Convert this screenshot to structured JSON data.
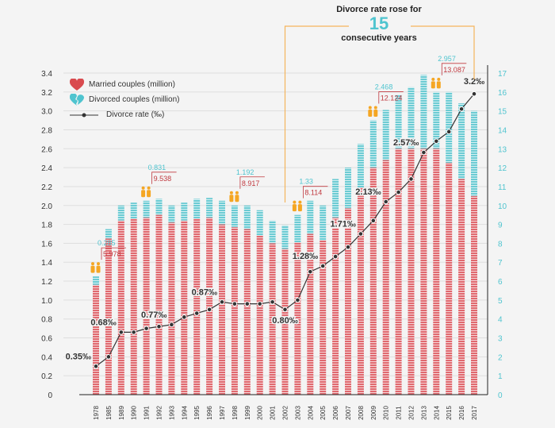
{
  "headline": {
    "line1": "Divorce rate rose for",
    "number": "15",
    "line2": "consecutive years"
  },
  "legend": {
    "married": "Married couples (million)",
    "divorced": "Divorced couples (million)",
    "rate": "Divorce rate (‰)"
  },
  "colors": {
    "married": "#e0696f",
    "divorced": "#6ccbd3",
    "rate_line": "#333333",
    "bracket": "#f5b45c",
    "people_icon": "#f5a623",
    "right_axis": "#4fc4cf"
  },
  "chart_data": {
    "type": "bar",
    "stacked_bars_with_line": true,
    "categories": [
      "1978",
      "1985",
      "1989",
      "1990",
      "1991",
      "1992",
      "1993",
      "1994",
      "1995",
      "1996",
      "1997",
      "1998",
      "1999",
      "2000",
      "2001",
      "2002",
      "2003",
      "2004",
      "2005",
      "2006",
      "2007",
      "2008",
      "2009",
      "2010",
      "2011",
      "2012",
      "2013",
      "2014",
      "2015",
      "2016",
      "2017"
    ],
    "left_axis": {
      "ylim": [
        0,
        3.4
      ],
      "ticks": [
        "0",
        "0.2",
        "0.4",
        "0.6",
        "0.8",
        "1.0",
        "1.2",
        "1.4",
        "1.6",
        "1.8",
        "2.0",
        "2.2",
        "2.4",
        "2.6",
        "2.8",
        "3.0",
        "3.2",
        "3.4"
      ]
    },
    "right_axis": {
      "ylim": [
        0,
        17
      ],
      "ticks": [
        "0",
        "1",
        "2",
        "3",
        "4",
        "5",
        "6",
        "7",
        "8",
        "9",
        "10",
        "11",
        "12",
        "13",
        "14",
        "15",
        "16",
        "17"
      ]
    },
    "grid": "horizontal",
    "legend_position": "top-left",
    "series": [
      {
        "name": "Married couples (million)",
        "axis": "left",
        "values": [
          1.16,
          1.65,
          1.84,
          1.86,
          1.87,
          1.9,
          1.82,
          1.84,
          1.86,
          1.87,
          1.8,
          1.77,
          1.75,
          1.68,
          1.6,
          1.54,
          1.61,
          1.7,
          1.63,
          1.87,
          1.97,
          2.19,
          2.4,
          2.48,
          2.6,
          2.6,
          2.6,
          2.6,
          2.45,
          2.28,
          2.1
        ]
      },
      {
        "name": "Divorced couples (million)",
        "axis": "left",
        "top_values": [
          1.25,
          1.75,
          2.0,
          2.03,
          2.05,
          2.07,
          2.0,
          2.03,
          2.07,
          2.08,
          2.05,
          2.0,
          2.0,
          1.95,
          1.84,
          1.79,
          1.9,
          2.05,
          2.0,
          2.28,
          2.4,
          2.65,
          2.9,
          3.01,
          3.17,
          3.25,
          3.38,
          3.2,
          3.2,
          3.08,
          3.0
        ]
      },
      {
        "name": "Divorce rate (‰)",
        "axis": "right",
        "type": "line",
        "values": [
          1.5,
          2.0,
          3.3,
          3.3,
          3.5,
          3.6,
          3.7,
          4.1,
          4.3,
          4.5,
          4.9,
          4.8,
          4.8,
          4.8,
          4.9,
          4.5,
          5.0,
          6.5,
          6.8,
          7.3,
          7.8,
          8.5,
          9.2,
          10.2,
          10.7,
          11.4,
          12.8,
          13.4,
          13.9,
          15.1,
          15.9
        ]
      }
    ],
    "rate_labels": [
      {
        "year": "1978",
        "text": "0.35‰"
      },
      {
        "year": "1989",
        "text": "0.68‰"
      },
      {
        "year": "1993",
        "text": "0.77‰"
      },
      {
        "year": "1997",
        "text": "0.87‰"
      },
      {
        "year": "2002",
        "text": "0.80‰"
      },
      {
        "year": "2005",
        "text": "1.28‰"
      },
      {
        "year": "2008",
        "text": "1.71‰"
      },
      {
        "year": "2010",
        "text": "2.13‰"
      },
      {
        "year": "2013",
        "text": "2.57‰"
      },
      {
        "year": "2017",
        "text": "3.2‰"
      }
    ],
    "annotations": [
      {
        "year": "1978",
        "divorced": "0.285",
        "married": "5.978"
      },
      {
        "year": "1991",
        "divorced": "0.831",
        "married": "9.538"
      },
      {
        "year": "1998",
        "divorced": "1.192",
        "married": "8.917"
      },
      {
        "year": "2003",
        "divorced": "1.33",
        "married": "8.114"
      },
      {
        "year": "2009",
        "divorced": "2.468",
        "married": "12.124"
      },
      {
        "year": "2014",
        "divorced": "2.957",
        "married": "13.087"
      }
    ]
  }
}
